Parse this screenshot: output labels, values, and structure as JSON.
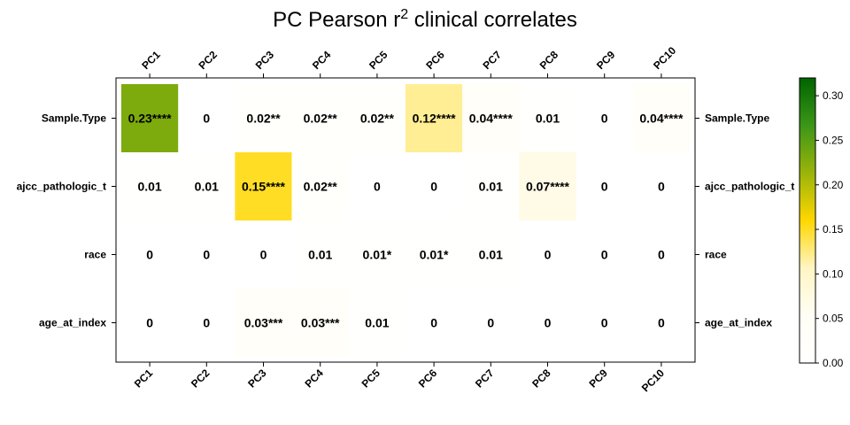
{
  "chart_data": {
    "type": "heatmap",
    "title": "PC Pearson r",
    "title_superscript": "2",
    "title_suffix": " clinical correlates",
    "x_categories": [
      "PC1",
      "PC2",
      "PC3",
      "PC4",
      "PC5",
      "PC6",
      "PC7",
      "PC8",
      "PC9",
      "PC10"
    ],
    "y_categories": [
      "Sample.Type",
      "ajcc_pathologic_t",
      "race",
      "age_at_index"
    ],
    "values": [
      [
        0.23,
        0.0,
        0.02,
        0.02,
        0.02,
        0.12,
        0.04,
        0.01,
        0.0,
        0.04
      ],
      [
        0.01,
        0.01,
        0.15,
        0.02,
        0.0,
        0.0,
        0.01,
        0.07,
        0.0,
        0.0
      ],
      [
        0.0,
        0.0,
        0.0,
        0.01,
        0.01,
        0.01,
        0.01,
        0.0,
        0.0,
        0.0
      ],
      [
        0.0,
        0.0,
        0.03,
        0.03,
        0.01,
        0.0,
        0.0,
        0.0,
        0.0,
        0.0
      ]
    ],
    "labels": [
      [
        "0.23****",
        "0",
        "0.02**",
        "0.02**",
        "0.02**",
        "0.12****",
        "0.04****",
        "0.01",
        "0",
        "0.04****"
      ],
      [
        "0.01",
        "0.01",
        "0.15****",
        "0.02**",
        "0",
        "0",
        "0.01",
        "0.07****",
        "0",
        "0"
      ],
      [
        "0",
        "0",
        "0",
        "0.01",
        "0.01*",
        "0.01*",
        "0.01",
        "0",
        "0",
        "0"
      ],
      [
        "0",
        "0",
        "0.03***",
        "0.03***",
        "0.01",
        "0",
        "0",
        "0",
        "0",
        "0"
      ]
    ],
    "colorbar": {
      "range": [
        0,
        0.32
      ],
      "ticks": [
        "0.00",
        "0.05",
        "0.10",
        "0.15",
        "0.20",
        "0.25",
        "0.30"
      ],
      "colors": [
        "#ffffff",
        "#fffef5",
        "#fff5c4",
        "#ffd700",
        "#9ab40a",
        "#3c9618",
        "#006400"
      ]
    },
    "grid": false,
    "legend": "right"
  }
}
